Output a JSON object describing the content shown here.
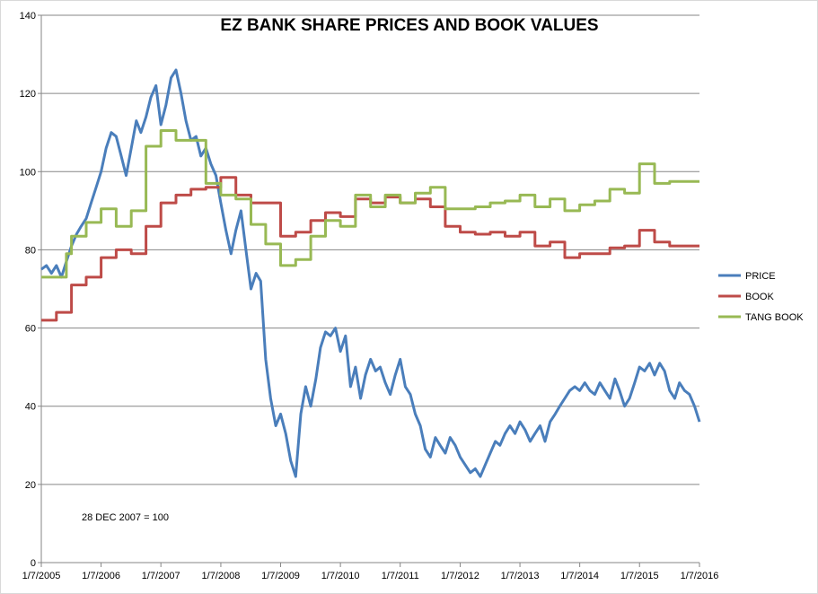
{
  "chart_data": {
    "type": "line",
    "title": "EZ BANK SHARE PRICES AND BOOK VALUES",
    "xlabel": "",
    "ylabel": "",
    "annotation": "28 DEC 2007  = 100",
    "ylim": [
      0,
      140
    ],
    "yticks": [
      0,
      20,
      40,
      60,
      80,
      100,
      120,
      140
    ],
    "xlim": [
      "2005-07-01",
      "2016-07-01"
    ],
    "xticks": [
      "1/7/2005",
      "1/7/2006",
      "1/7/2007",
      "1/7/2008",
      "1/7/2009",
      "1/7/2010",
      "1/7/2011",
      "1/7/2012",
      "1/7/2013",
      "1/7/2014",
      "1/7/2015",
      "1/7/2016"
    ],
    "grid": true,
    "legend_position": "right",
    "series": [
      {
        "name": "PRICE",
        "color": "#4a7ebb",
        "points": [
          [
            "2005-07-01",
            75
          ],
          [
            "2005-08-01",
            76
          ],
          [
            "2005-09-01",
            74
          ],
          [
            "2005-10-01",
            76
          ],
          [
            "2005-11-01",
            73
          ],
          [
            "2005-12-01",
            77
          ],
          [
            "2006-01-01",
            81
          ],
          [
            "2006-02-01",
            84
          ],
          [
            "2006-03-01",
            86
          ],
          [
            "2006-04-01",
            88
          ],
          [
            "2006-05-01",
            92
          ],
          [
            "2006-06-01",
            96
          ],
          [
            "2006-07-01",
            100
          ],
          [
            "2006-08-01",
            106
          ],
          [
            "2006-09-01",
            110
          ],
          [
            "2006-10-01",
            109
          ],
          [
            "2006-11-01",
            104
          ],
          [
            "2006-12-01",
            99
          ],
          [
            "2007-01-01",
            106
          ],
          [
            "2007-02-01",
            113
          ],
          [
            "2007-03-01",
            110
          ],
          [
            "2007-04-01",
            114
          ],
          [
            "2007-05-01",
            119
          ],
          [
            "2007-06-01",
            122
          ],
          [
            "2007-07-01",
            112
          ],
          [
            "2007-08-01",
            117
          ],
          [
            "2007-09-01",
            124
          ],
          [
            "2007-10-01",
            126
          ],
          [
            "2007-11-01",
            120
          ],
          [
            "2007-12-01",
            113
          ],
          [
            "2008-01-01",
            108
          ],
          [
            "2008-02-01",
            109
          ],
          [
            "2008-03-01",
            104
          ],
          [
            "2008-04-01",
            106
          ],
          [
            "2008-05-01",
            102
          ],
          [
            "2008-06-01",
            99
          ],
          [
            "2008-07-01",
            92
          ],
          [
            "2008-08-01",
            85
          ],
          [
            "2008-09-01",
            79
          ],
          [
            "2008-10-01",
            85
          ],
          [
            "2008-11-01",
            90
          ],
          [
            "2008-12-01",
            80
          ],
          [
            "2009-01-01",
            70
          ],
          [
            "2009-02-01",
            74
          ],
          [
            "2009-03-01",
            72
          ],
          [
            "2009-04-01",
            52
          ],
          [
            "2009-05-01",
            42
          ],
          [
            "2009-06-01",
            35
          ],
          [
            "2009-07-01",
            38
          ],
          [
            "2009-08-01",
            33
          ],
          [
            "2009-09-01",
            26
          ],
          [
            "2009-10-01",
            22
          ],
          [
            "2009-11-01",
            38
          ],
          [
            "2009-12-01",
            45
          ],
          [
            "2010-01-01",
            40
          ],
          [
            "2010-02-01",
            47
          ],
          [
            "2010-03-01",
            55
          ],
          [
            "2010-04-01",
            59
          ],
          [
            "2010-05-01",
            58
          ],
          [
            "2010-06-01",
            60
          ],
          [
            "2010-07-01",
            54
          ],
          [
            "2010-08-01",
            58
          ],
          [
            "2010-09-01",
            45
          ],
          [
            "2010-10-01",
            50
          ],
          [
            "2010-11-01",
            42
          ],
          [
            "2010-12-01",
            48
          ],
          [
            "2011-01-01",
            52
          ],
          [
            "2011-02-01",
            49
          ],
          [
            "2011-03-01",
            50
          ],
          [
            "2011-04-01",
            46
          ],
          [
            "2011-05-01",
            43
          ],
          [
            "2011-06-01",
            48
          ],
          [
            "2011-07-01",
            52
          ],
          [
            "2011-08-01",
            45
          ],
          [
            "2011-09-01",
            43
          ],
          [
            "2011-10-01",
            38
          ],
          [
            "2011-11-01",
            35
          ],
          [
            "2011-12-01",
            29
          ],
          [
            "2012-01-01",
            27
          ],
          [
            "2012-02-01",
            32
          ],
          [
            "2012-03-01",
            30
          ],
          [
            "2012-04-01",
            28
          ],
          [
            "2012-05-01",
            32
          ],
          [
            "2012-06-01",
            30
          ],
          [
            "2012-07-01",
            27
          ],
          [
            "2012-08-01",
            25
          ],
          [
            "2012-09-01",
            23
          ],
          [
            "2012-10-01",
            24
          ],
          [
            "2012-11-01",
            22
          ],
          [
            "2012-12-01",
            25
          ],
          [
            "2013-01-01",
            28
          ],
          [
            "2013-02-01",
            31
          ],
          [
            "2013-03-01",
            30
          ],
          [
            "2013-04-01",
            33
          ],
          [
            "2013-05-01",
            35
          ],
          [
            "2013-06-01",
            33
          ],
          [
            "2013-07-01",
            36
          ],
          [
            "2013-08-01",
            34
          ],
          [
            "2013-09-01",
            31
          ],
          [
            "2013-10-01",
            33
          ],
          [
            "2013-11-01",
            35
          ],
          [
            "2013-12-01",
            31
          ],
          [
            "2014-01-01",
            36
          ],
          [
            "2014-02-01",
            38
          ],
          [
            "2014-03-01",
            40
          ],
          [
            "2014-04-01",
            42
          ],
          [
            "2014-05-01",
            44
          ],
          [
            "2014-06-01",
            45
          ],
          [
            "2014-07-01",
            44
          ],
          [
            "2014-08-01",
            46
          ],
          [
            "2014-09-01",
            44
          ],
          [
            "2014-10-01",
            43
          ],
          [
            "2014-11-01",
            46
          ],
          [
            "2014-12-01",
            44
          ],
          [
            "2015-01-01",
            42
          ],
          [
            "2015-02-01",
            47
          ],
          [
            "2015-03-01",
            44
          ],
          [
            "2015-04-01",
            40
          ],
          [
            "2015-05-01",
            42
          ],
          [
            "2015-06-01",
            46
          ],
          [
            "2015-07-01",
            50
          ],
          [
            "2015-08-01",
            49
          ],
          [
            "2015-09-01",
            51
          ],
          [
            "2015-10-01",
            48
          ],
          [
            "2015-11-01",
            51
          ],
          [
            "2015-12-01",
            49
          ],
          [
            "2016-01-01",
            44
          ],
          [
            "2016-02-01",
            42
          ],
          [
            "2016-03-01",
            46
          ],
          [
            "2016-04-01",
            44
          ],
          [
            "2016-05-01",
            43
          ],
          [
            "2016-06-01",
            40
          ],
          [
            "2016-07-01",
            36
          ]
        ]
      },
      {
        "name": "BOOK",
        "color": "#be4b48",
        "points": [
          [
            "2005-07-01",
            62
          ],
          [
            "2005-10-01",
            64
          ],
          [
            "2006-01-01",
            71
          ],
          [
            "2006-04-01",
            73
          ],
          [
            "2006-07-01",
            78
          ],
          [
            "2006-10-01",
            80
          ],
          [
            "2007-01-01",
            79
          ],
          [
            "2007-04-01",
            86
          ],
          [
            "2007-07-01",
            92
          ],
          [
            "2007-10-01",
            94
          ],
          [
            "2008-01-01",
            95.5
          ],
          [
            "2008-04-01",
            96
          ],
          [
            "2008-07-01",
            98.5
          ],
          [
            "2008-10-01",
            94
          ],
          [
            "2009-01-01",
            92
          ],
          [
            "2009-07-01",
            83.5
          ],
          [
            "2009-10-01",
            84.5
          ],
          [
            "2010-01-01",
            87.5
          ],
          [
            "2010-04-01",
            89.5
          ],
          [
            "2010-07-01",
            88.5
          ],
          [
            "2010-10-01",
            93
          ],
          [
            "2011-01-01",
            92
          ],
          [
            "2011-04-01",
            93.5
          ],
          [
            "2011-07-01",
            92
          ],
          [
            "2011-10-01",
            93
          ],
          [
            "2012-01-01",
            91
          ],
          [
            "2012-04-01",
            86
          ],
          [
            "2012-07-01",
            84.5
          ],
          [
            "2012-10-01",
            84
          ],
          [
            "2013-01-01",
            84.5
          ],
          [
            "2013-04-01",
            83.5
          ],
          [
            "2013-07-01",
            84.5
          ],
          [
            "2013-10-01",
            81
          ],
          [
            "2014-01-01",
            82
          ],
          [
            "2014-04-01",
            78
          ],
          [
            "2014-07-01",
            79
          ],
          [
            "2014-10-01",
            79
          ],
          [
            "2015-01-01",
            80.5
          ],
          [
            "2015-04-01",
            81
          ],
          [
            "2015-07-01",
            85
          ],
          [
            "2015-10-01",
            82
          ],
          [
            "2016-01-01",
            81
          ],
          [
            "2016-07-01",
            81
          ]
        ]
      },
      {
        "name": "TANG BOOK",
        "color": "#98b954",
        "points": [
          [
            "2005-07-01",
            73
          ],
          [
            "2005-12-01",
            79
          ],
          [
            "2006-01-01",
            83.5
          ],
          [
            "2006-04-01",
            87
          ],
          [
            "2006-07-01",
            90.5
          ],
          [
            "2006-10-01",
            86
          ],
          [
            "2007-01-01",
            90
          ],
          [
            "2007-04-01",
            106.5
          ],
          [
            "2007-07-01",
            110.5
          ],
          [
            "2007-10-01",
            108
          ],
          [
            "2008-01-01",
            108
          ],
          [
            "2008-04-01",
            97
          ],
          [
            "2008-07-01",
            94
          ],
          [
            "2008-10-01",
            93
          ],
          [
            "2009-01-01",
            86.5
          ],
          [
            "2009-04-01",
            81.5
          ],
          [
            "2009-07-01",
            76
          ],
          [
            "2009-10-01",
            77.5
          ],
          [
            "2010-01-01",
            83.5
          ],
          [
            "2010-04-01",
            87.5
          ],
          [
            "2010-07-01",
            86
          ],
          [
            "2010-10-01",
            94
          ],
          [
            "2011-01-01",
            91
          ],
          [
            "2011-04-01",
            94
          ],
          [
            "2011-07-01",
            92
          ],
          [
            "2011-10-01",
            94.5
          ],
          [
            "2012-01-01",
            96
          ],
          [
            "2012-04-01",
            90.5
          ],
          [
            "2012-07-01",
            90.5
          ],
          [
            "2012-10-01",
            91
          ],
          [
            "2013-01-01",
            92
          ],
          [
            "2013-04-01",
            92.5
          ],
          [
            "2013-07-01",
            94
          ],
          [
            "2013-10-01",
            91
          ],
          [
            "2014-01-01",
            93
          ],
          [
            "2014-04-01",
            90
          ],
          [
            "2014-07-01",
            91.5
          ],
          [
            "2014-10-01",
            92.5
          ],
          [
            "2015-01-01",
            95.5
          ],
          [
            "2015-04-01",
            94.5
          ],
          [
            "2015-07-01",
            102
          ],
          [
            "2015-10-01",
            97
          ],
          [
            "2016-01-01",
            97.5
          ],
          [
            "2016-07-01",
            97.5
          ]
        ]
      }
    ]
  }
}
